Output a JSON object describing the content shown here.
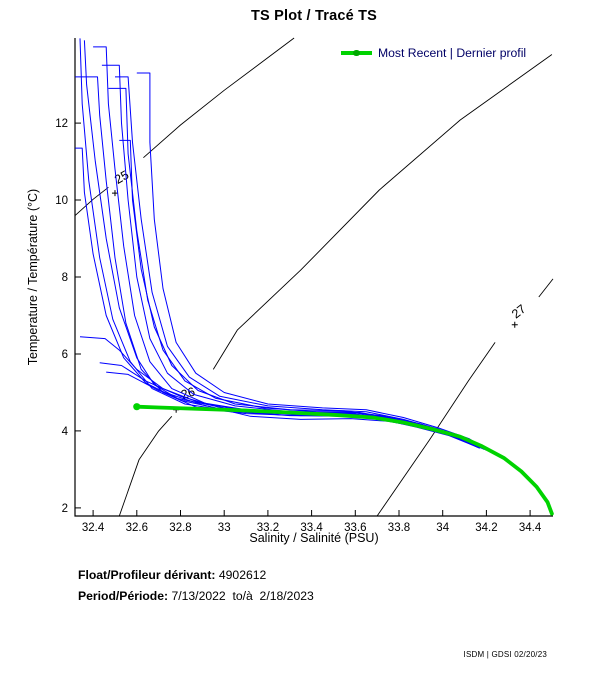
{
  "title": "TS Plot / Tracé TS",
  "legend": {
    "label": "Most Recent | Dernier profil"
  },
  "footer": {
    "float_label": "Float/Profileur dérivant:",
    "float_value": " 4902612",
    "period_label": "Period/Période:",
    "period_value": " 7/13/2022  to/à  2/18/2023"
  },
  "watermark": "ISDM | GDSI 02/20/23",
  "colors": {
    "profile_blue": "#0000ff",
    "recent_green": "#00d300",
    "contour_black": "#000000",
    "legend_text": "#000066",
    "text": "#000000",
    "background": "#ffffff"
  },
  "chart_data": {
    "type": "line",
    "title": "TS Plot / Tracé TS",
    "xlabel": "Salinity / Salinité (PSU)",
    "ylabel": "Temperature / Température (°C)",
    "xlim": [
      32.317,
      34.505
    ],
    "ylim": [
      1.79,
      14.21
    ],
    "grid": false,
    "legend_position": "top-right",
    "x_tick_values": [
      32.4,
      32.6,
      32.8,
      33,
      33.2,
      33.4,
      33.6,
      33.8,
      34,
      34.2,
      34.4
    ],
    "x_tick_labels": [
      "32.4",
      "32.6",
      "32.8",
      "33",
      "33.2",
      "33.4",
      "33.6",
      "33.8",
      "34",
      "34.2",
      "34.4"
    ],
    "y_tick_values": [
      2,
      4,
      6,
      8,
      10,
      12
    ],
    "y_tick_labels": [
      "2",
      "4",
      "6",
      "8",
      "10",
      "12"
    ],
    "isopycnals": [
      {
        "label": "25",
        "label_s": 32.54,
        "label_t": 10.5,
        "label_angle": -30,
        "plus_s": 32.5,
        "plus_t": 10.18,
        "seg1": [
          [
            32.318,
            9.6
          ],
          [
            32.4,
            10.02
          ],
          [
            32.47,
            10.33
          ]
        ],
        "seg2": [
          [
            32.63,
            11.1
          ],
          [
            32.8,
            11.95
          ],
          [
            33.0,
            12.85
          ],
          [
            33.2,
            13.7
          ],
          [
            33.32,
            14.21
          ]
        ]
      },
      {
        "label": "26",
        "label_s": 32.84,
        "label_t": 4.88,
        "label_angle": -18,
        "plus_s": 32.78,
        "plus_t": 4.55,
        "seg1": [
          [
            32.52,
            1.79
          ],
          [
            32.61,
            3.25
          ],
          [
            32.7,
            4.0
          ],
          [
            32.76,
            4.38
          ]
        ],
        "seg2": [
          [
            32.95,
            5.6
          ],
          [
            33.06,
            6.62
          ],
          [
            33.35,
            8.18
          ],
          [
            33.71,
            10.26
          ],
          [
            34.08,
            12.08
          ],
          [
            34.5,
            13.78
          ]
        ]
      },
      {
        "label": "27",
        "label_s": 34.36,
        "label_t": 7.02,
        "label_angle": -38,
        "plus_s": 34.33,
        "plus_t": 6.76,
        "seg1": [
          [
            33.7,
            1.79
          ],
          [
            33.94,
            3.77
          ],
          [
            34.12,
            5.32
          ],
          [
            34.24,
            6.3
          ]
        ],
        "seg2": [
          [
            34.44,
            7.48
          ],
          [
            34.505,
            7.95
          ]
        ]
      }
    ],
    "profiles": [
      [
        [
          32.318,
          13.2
        ],
        [
          32.42,
          13.2
        ],
        [
          32.43,
          12.2
        ],
        [
          32.46,
          10.5
        ],
        [
          32.5,
          8.5
        ],
        [
          32.55,
          6.8
        ],
        [
          32.62,
          5.6
        ],
        [
          32.72,
          5.0
        ],
        [
          32.88,
          4.6
        ],
        [
          33.1,
          4.45
        ],
        [
          33.35,
          4.4
        ],
        [
          33.55,
          4.42
        ],
        [
          33.75,
          4.3
        ],
        [
          33.9,
          4.1
        ],
        [
          34.05,
          3.85
        ],
        [
          34.18,
          3.55
        ]
      ],
      [
        [
          32.36,
          14.15
        ],
        [
          32.37,
          13.0
        ],
        [
          32.41,
          11.0
        ],
        [
          32.46,
          9.0
        ],
        [
          32.52,
          7.2
        ],
        [
          32.6,
          5.9
        ],
        [
          32.68,
          5.2
        ],
        [
          32.8,
          4.8
        ],
        [
          33.0,
          4.55
        ],
        [
          33.25,
          4.45
        ],
        [
          33.5,
          4.48
        ],
        [
          33.7,
          4.38
        ],
        [
          33.88,
          4.15
        ],
        [
          34.02,
          3.92
        ],
        [
          34.15,
          3.62
        ]
      ],
      [
        [
          32.4,
          13.98
        ],
        [
          32.46,
          13.98
        ],
        [
          32.47,
          12.5
        ],
        [
          32.5,
          10.8
        ],
        [
          32.54,
          8.8
        ],
        [
          32.59,
          7.0
        ],
        [
          32.66,
          5.8
        ],
        [
          32.76,
          5.1
        ],
        [
          32.92,
          4.7
        ],
        [
          33.15,
          4.5
        ],
        [
          33.4,
          4.45
        ],
        [
          33.6,
          4.47
        ],
        [
          33.78,
          4.32
        ],
        [
          33.95,
          4.08
        ],
        [
          34.1,
          3.8
        ],
        [
          34.2,
          3.5
        ]
      ],
      [
        [
          32.44,
          13.5
        ],
        [
          32.52,
          13.5
        ],
        [
          32.53,
          12.0
        ],
        [
          32.56,
          10.0
        ],
        [
          32.6,
          8.0
        ],
        [
          32.66,
          6.4
        ],
        [
          32.74,
          5.5
        ],
        [
          32.86,
          4.95
        ],
        [
          33.05,
          4.65
        ],
        [
          33.3,
          4.5
        ],
        [
          33.55,
          4.5
        ],
        [
          33.72,
          4.4
        ],
        [
          33.9,
          4.18
        ],
        [
          34.05,
          3.9
        ],
        [
          34.17,
          3.6
        ]
      ],
      [
        [
          32.5,
          13.2
        ],
        [
          32.56,
          13.2
        ],
        [
          32.58,
          11.5
        ],
        [
          32.62,
          9.5
        ],
        [
          32.67,
          7.6
        ],
        [
          32.74,
          6.2
        ],
        [
          32.84,
          5.4
        ],
        [
          32.98,
          4.9
        ],
        [
          33.2,
          4.65
        ],
        [
          33.45,
          4.55
        ],
        [
          33.65,
          4.5
        ],
        [
          33.82,
          4.3
        ],
        [
          33.98,
          4.05
        ],
        [
          34.12,
          3.75
        ],
        [
          34.2,
          3.5
        ]
      ],
      [
        [
          32.318,
          11.35
        ],
        [
          32.35,
          11.35
        ],
        [
          32.36,
          10.2
        ],
        [
          32.4,
          8.6
        ],
        [
          32.46,
          7.0
        ],
        [
          32.54,
          5.9
        ],
        [
          32.64,
          5.25
        ],
        [
          32.78,
          4.85
        ],
        [
          33.0,
          4.6
        ],
        [
          33.3,
          4.48
        ],
        [
          33.6,
          4.44
        ],
        [
          33.8,
          4.25
        ],
        [
          33.98,
          4.0
        ],
        [
          34.12,
          3.7
        ]
      ],
      [
        [
          32.52,
          11.55
        ],
        [
          32.57,
          11.55
        ],
        [
          32.58,
          10.0
        ],
        [
          32.62,
          8.2
        ],
        [
          32.68,
          6.7
        ],
        [
          32.76,
          5.7
        ],
        [
          32.88,
          5.05
        ],
        [
          33.05,
          4.7
        ],
        [
          33.3,
          4.55
        ],
        [
          33.55,
          4.52
        ],
        [
          33.75,
          4.35
        ],
        [
          33.92,
          4.1
        ],
        [
          34.08,
          3.8
        ],
        [
          34.18,
          3.55
        ]
      ],
      [
        [
          32.47,
          12.9
        ],
        [
          32.55,
          12.9
        ],
        [
          32.56,
          11.2
        ],
        [
          32.6,
          9.2
        ],
        [
          32.65,
          7.4
        ],
        [
          32.72,
          6.1
        ],
        [
          32.82,
          5.3
        ],
        [
          32.96,
          4.85
        ],
        [
          33.18,
          4.6
        ],
        [
          33.42,
          4.5
        ],
        [
          33.62,
          4.48
        ],
        [
          33.8,
          4.3
        ],
        [
          33.96,
          4.05
        ],
        [
          34.1,
          3.78
        ],
        [
          34.19,
          3.52
        ]
      ],
      [
        [
          32.34,
          6.45
        ],
        [
          32.455,
          6.4
        ],
        [
          32.52,
          6.1
        ],
        [
          32.6,
          5.6
        ],
        [
          32.72,
          5.1
        ],
        [
          32.88,
          4.75
        ],
        [
          33.1,
          4.55
        ],
        [
          33.35,
          4.45
        ],
        [
          33.6,
          4.42
        ],
        [
          33.78,
          4.3
        ],
        [
          33.93,
          4.08
        ],
        [
          34.06,
          3.86
        ],
        [
          34.17,
          3.58
        ]
      ],
      [
        [
          32.43,
          5.77
        ],
        [
          32.53,
          5.7
        ],
        [
          32.64,
          5.3
        ],
        [
          32.8,
          4.9
        ],
        [
          33.0,
          4.58
        ],
        [
          33.25,
          4.42
        ],
        [
          33.5,
          4.4
        ],
        [
          33.68,
          4.35
        ],
        [
          33.85,
          4.18
        ],
        [
          34.0,
          3.95
        ],
        [
          34.14,
          3.65
        ]
      ],
      [
        [
          32.46,
          5.53
        ],
        [
          32.56,
          5.47
        ],
        [
          32.7,
          5.05
        ],
        [
          32.9,
          4.68
        ],
        [
          33.12,
          4.38
        ],
        [
          33.35,
          4.3
        ],
        [
          33.58,
          4.32
        ],
        [
          33.75,
          4.25
        ],
        [
          33.9,
          4.1
        ],
        [
          34.05,
          3.85
        ],
        [
          34.17,
          3.55
        ]
      ],
      [
        [
          32.34,
          14.2
        ],
        [
          32.35,
          12.5
        ],
        [
          32.38,
          10.5
        ],
        [
          32.43,
          8.5
        ],
        [
          32.49,
          6.9
        ],
        [
          32.57,
          5.8
        ],
        [
          32.67,
          5.1
        ],
        [
          32.82,
          4.7
        ],
        [
          33.05,
          4.5
        ],
        [
          33.3,
          4.4
        ],
        [
          33.55,
          4.38
        ],
        [
          33.72,
          4.3
        ],
        [
          33.88,
          4.1
        ],
        [
          34.03,
          3.88
        ],
        [
          34.16,
          3.58
        ]
      ],
      [
        [
          32.6,
          13.3
        ],
        [
          32.66,
          13.3
        ],
        [
          32.66,
          11.5
        ],
        [
          32.68,
          9.5
        ],
        [
          32.72,
          7.7
        ],
        [
          32.78,
          6.3
        ],
        [
          32.87,
          5.5
        ],
        [
          33.0,
          5.0
        ],
        [
          33.2,
          4.7
        ],
        [
          33.45,
          4.6
        ],
        [
          33.65,
          4.55
        ],
        [
          33.82,
          4.35
        ],
        [
          33.98,
          4.08
        ],
        [
          34.12,
          3.8
        ],
        [
          34.2,
          3.52
        ]
      ]
    ],
    "most_recent": {
      "name": "Most Recent | Dernier profil",
      "points": [
        [
          32.6,
          4.63
        ],
        [
          32.7,
          4.61
        ],
        [
          32.9,
          4.57
        ],
        [
          33.1,
          4.53
        ],
        [
          33.3,
          4.48
        ],
        [
          33.5,
          4.42
        ],
        [
          33.68,
          4.35
        ],
        [
          33.82,
          4.22
        ],
        [
          33.95,
          4.05
        ],
        [
          34.08,
          3.85
        ],
        [
          34.18,
          3.6
        ],
        [
          34.28,
          3.3
        ],
        [
          34.36,
          2.95
        ],
        [
          34.43,
          2.55
        ],
        [
          34.48,
          2.15
        ],
        [
          34.5,
          1.85
        ]
      ]
    }
  }
}
